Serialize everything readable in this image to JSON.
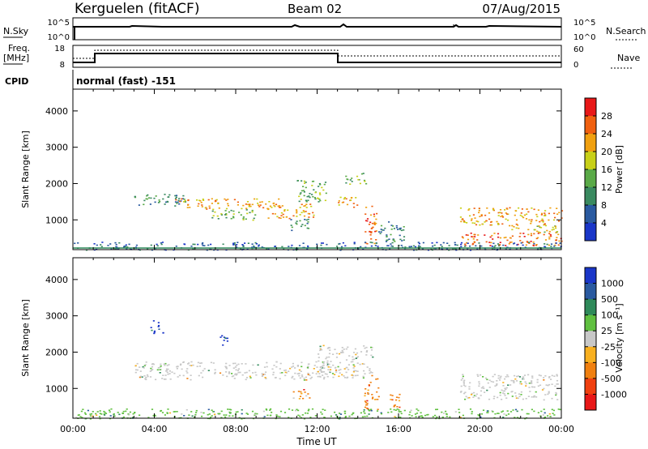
{
  "header": {
    "station": "Kerguelen (fitACF)",
    "beam": "Beam 02",
    "date": "07/Aug/2015"
  },
  "status_panels": {
    "nsky_label": "N.Sky",
    "nsky_ticks": [
      "10^5",
      "10^0"
    ],
    "nsearch_label": "N.Search",
    "nsearch_ticks": [
      "10^5",
      "10^0"
    ],
    "freq_label": "Freq.",
    "freq_unit": "[MHz]",
    "freq_ticks": [
      "18",
      "8"
    ],
    "nave_label": "Nave",
    "nave_ticks": [
      "60",
      "0"
    ],
    "cpid_label": "CPID",
    "cpid_text": "normal (fast) -151"
  },
  "colors": {
    "power": [
      "#1a36c8",
      "#2a5aa0",
      "#3a8a60",
      "#5aaa48",
      "#c8d018",
      "#f0a010",
      "#f06010",
      "#e81818"
    ],
    "velocity": [
      "#e81818",
      "#f04010",
      "#f08010",
      "#f8b020",
      "#c8c8c8",
      "#60c040",
      "#2f8a5a",
      "#2a5aa0",
      "#1a36c8"
    ],
    "ground_scatter": "#b4b4b4"
  },
  "chart_data": [
    {
      "type": "heatmap",
      "name": "power",
      "xlabel": "",
      "ylabel": "Slant Range [km]",
      "x_range_hours": [
        0,
        24
      ],
      "ylim": [
        180,
        4600
      ],
      "y_ticks": [
        "4000",
        "3000",
        "2000",
        "1000"
      ],
      "x_ticks": [
        "00:00",
        "04:00",
        "08:00",
        "12:00",
        "16:00",
        "20:00",
        "00:00"
      ],
      "colorbar": {
        "label": "Power [dB]",
        "min": 0,
        "max": 32,
        "ticks": [
          "28",
          "24",
          "20",
          "16",
          "12",
          "8",
          "4"
        ]
      },
      "regions": [
        {
          "t0": 3.0,
          "t1": 5.5,
          "r0": 1400,
          "r1": 1750,
          "level": 10
        },
        {
          "t0": 5.0,
          "t1": 10.2,
          "r0": 1300,
          "r1": 1600,
          "level": 24
        },
        {
          "t0": 6.8,
          "t1": 9.0,
          "r0": 1000,
          "r1": 1300,
          "level": 14
        },
        {
          "t0": 9.5,
          "t1": 11.8,
          "r0": 1050,
          "r1": 1450,
          "level": 22
        },
        {
          "t0": 10.6,
          "t1": 11.6,
          "r0": 700,
          "r1": 1050,
          "level": 10
        },
        {
          "t0": 11.0,
          "t1": 12.5,
          "r0": 1450,
          "r1": 2100,
          "level": 14
        },
        {
          "t0": 13.0,
          "t1": 14.0,
          "r0": 1350,
          "r1": 1700,
          "level": 24
        },
        {
          "t0": 13.3,
          "t1": 14.4,
          "r0": 2000,
          "r1": 2300,
          "level": 14
        },
        {
          "t0": 14.3,
          "t1": 14.9,
          "r0": 300,
          "r1": 1400,
          "level": 26
        },
        {
          "t0": 15.0,
          "t1": 16.3,
          "r0": 400,
          "r1": 1000,
          "level": 10
        },
        {
          "t0": 19.0,
          "t1": 24.0,
          "r0": 850,
          "r1": 1350,
          "level": 22
        },
        {
          "t0": 19.0,
          "t1": 24.0,
          "r0": 300,
          "r1": 650,
          "level": 28
        },
        {
          "t0": 21.5,
          "t1": 24.0,
          "r0": 650,
          "r1": 850,
          "level": 20
        },
        {
          "t0": 0.0,
          "t1": 24.0,
          "r0": 180,
          "r1": 400,
          "level": 8
        }
      ]
    },
    {
      "type": "heatmap",
      "name": "velocity",
      "xlabel": "Time UT",
      "ylabel": "Slant Range [km]",
      "x_range_hours": [
        0,
        24
      ],
      "ylim": [
        180,
        4600
      ],
      "y_ticks": [
        "4000",
        "3000",
        "2000",
        "1000"
      ],
      "x_ticks": [
        "00:00",
        "04:00",
        "08:00",
        "12:00",
        "16:00",
        "20:00",
        "00:00"
      ],
      "colorbar": {
        "label": "Velocity [m s⁻¹]",
        "ticks": [
          "1000",
          "500",
          "100",
          "25",
          "-25",
          "-100",
          "-500",
          "-1000"
        ]
      },
      "regions": [
        {
          "t0": 3.0,
          "t1": 12.5,
          "r0": 1250,
          "r1": 1750,
          "level": 4
        },
        {
          "t0": 3.8,
          "t1": 4.4,
          "r0": 2500,
          "r1": 2900,
          "level": 8
        },
        {
          "t0": 7.0,
          "t1": 7.6,
          "r0": 2200,
          "r1": 2500,
          "level": 8
        },
        {
          "t0": 10.7,
          "t1": 11.6,
          "r0": 700,
          "r1": 1000,
          "level": 2
        },
        {
          "t0": 12.0,
          "t1": 14.8,
          "r0": 1300,
          "r1": 2200,
          "level": 4
        },
        {
          "t0": 14.3,
          "t1": 15.0,
          "r0": 400,
          "r1": 1300,
          "level": 2
        },
        {
          "t0": 15.5,
          "t1": 16.2,
          "r0": 500,
          "r1": 900,
          "level": 2
        },
        {
          "t0": 19.0,
          "t1": 24.0,
          "r0": 700,
          "r1": 1400,
          "level": 4
        },
        {
          "t0": 0.0,
          "t1": 24.0,
          "r0": 180,
          "r1": 450,
          "level": 5
        }
      ]
    }
  ]
}
